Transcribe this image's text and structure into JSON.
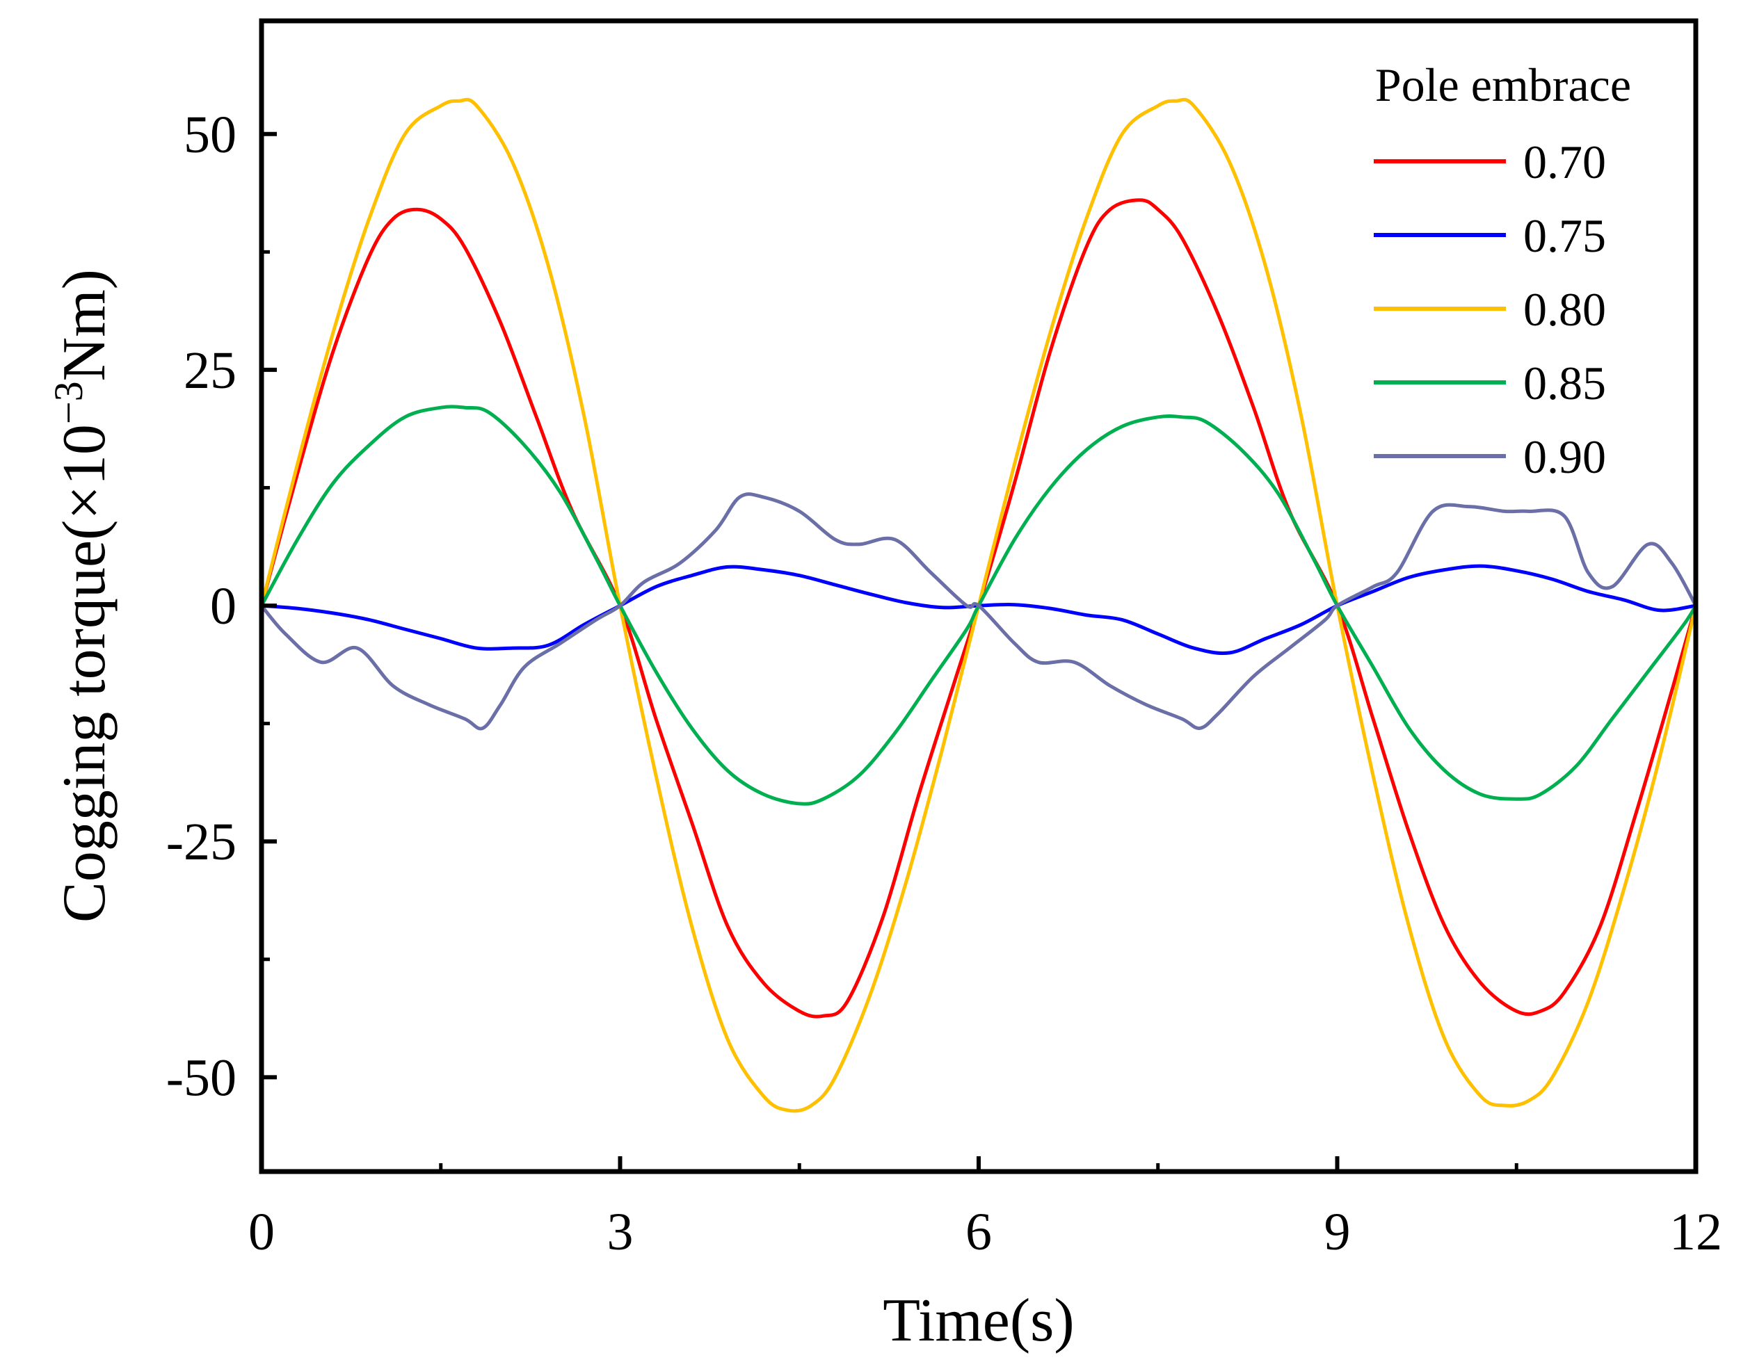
{
  "chart_data": {
    "type": "line",
    "title": "",
    "xlabel": "Time(s)",
    "ylabel": "Cogging torque(×10",
    "ylabel_sup": "−3",
    "ylabel_tail": "Nm)",
    "xlim": [
      0,
      12
    ],
    "ylim": [
      -60,
      62
    ],
    "xticks": [
      0,
      3,
      6,
      9,
      12
    ],
    "xtick_labels": [
      "0",
      "3",
      "6",
      "9",
      "12"
    ],
    "yticks": [
      50,
      25,
      0,
      -25,
      -50
    ],
    "ytick_labels": [
      "50",
      "25",
      "0",
      "-25",
      "-50"
    ],
    "grid": false,
    "legend_title": "Pole embrace",
    "legend_position": "top-right",
    "series": [
      {
        "name": "0.70",
        "color": "#ff0000",
        "x": [
          0,
          0.3,
          0.6,
          0.9,
          1.1,
          1.3,
          1.5,
          1.7,
          2.0,
          2.3,
          2.6,
          3.0,
          3.3,
          3.6,
          3.9,
          4.2,
          4.5,
          4.7,
          4.9,
          5.2,
          5.5,
          5.8,
          6.0,
          6.3,
          6.6,
          6.9,
          7.1,
          7.35,
          7.5,
          7.7,
          8.0,
          8.3,
          8.6,
          9.0,
          9.3,
          9.6,
          9.9,
          10.2,
          10.5,
          10.7,
          10.9,
          11.2,
          11.5,
          11.8,
          12.0
        ],
        "y": [
          0,
          14,
          27,
          37,
          41,
          42,
          41,
          38,
          30,
          20,
          10,
          0,
          -12,
          -23,
          -34,
          -40,
          -43,
          -43.5,
          -42,
          -33,
          -20,
          -8,
          0,
          13,
          27,
          38,
          42,
          43,
          42,
          39,
          31,
          21,
          10,
          0,
          -12,
          -24,
          -34,
          -40,
          -43,
          -43,
          -41,
          -34,
          -22,
          -9,
          0
        ]
      },
      {
        "name": "0.75",
        "color": "#0000ff",
        "x": [
          0,
          0.3,
          0.6,
          0.9,
          1.2,
          1.5,
          1.8,
          2.1,
          2.4,
          2.7,
          3.0,
          3.3,
          3.6,
          3.9,
          4.2,
          4.5,
          4.8,
          5.1,
          5.4,
          5.7,
          6.0,
          6.3,
          6.6,
          6.9,
          7.2,
          7.5,
          7.8,
          8.1,
          8.4,
          8.7,
          9.0,
          9.3,
          9.6,
          9.9,
          10.2,
          10.5,
          10.8,
          11.1,
          11.4,
          11.7,
          12.0
        ],
        "y": [
          0,
          -0.3,
          -0.8,
          -1.5,
          -2.5,
          -3.5,
          -4.5,
          -4.5,
          -4.2,
          -2,
          0,
          2,
          3.2,
          4.1,
          3.8,
          3.2,
          2.2,
          1.2,
          0.3,
          -0.2,
          0,
          0.1,
          -0.3,
          -1,
          -1.5,
          -3,
          -4.5,
          -5,
          -3.5,
          -2,
          0,
          1.5,
          3,
          3.8,
          4.2,
          3.7,
          2.8,
          1.5,
          0.6,
          -0.5,
          0
        ]
      },
      {
        "name": "0.80",
        "color": "#ffc000",
        "x": [
          0,
          0.3,
          0.6,
          0.9,
          1.2,
          1.5,
          1.65,
          1.8,
          2.1,
          2.4,
          2.7,
          3.0,
          3.3,
          3.6,
          3.9,
          4.2,
          4.4,
          4.6,
          4.8,
          5.1,
          5.4,
          5.7,
          6.0,
          6.3,
          6.6,
          6.9,
          7.2,
          7.5,
          7.65,
          7.8,
          8.1,
          8.4,
          8.7,
          9.0,
          9.3,
          9.6,
          9.9,
          10.2,
          10.4,
          10.6,
          10.8,
          11.1,
          11.4,
          11.7,
          12.0
        ],
        "y": [
          0,
          15,
          29,
          41,
          50,
          53,
          53.5,
          53,
          47,
          36,
          20,
          0,
          -18,
          -34,
          -46,
          -52,
          -53.5,
          -53,
          -50,
          -41,
          -29,
          -15,
          0,
          15,
          29,
          41,
          50,
          53,
          53.5,
          53,
          47,
          36,
          20,
          0,
          -18,
          -34,
          -46,
          -52,
          -53,
          -52.5,
          -50,
          -42,
          -30,
          -16,
          0
        ]
      },
      {
        "name": "0.85",
        "color": "#00b050",
        "x": [
          0,
          0.3,
          0.6,
          0.9,
          1.2,
          1.5,
          1.7,
          1.9,
          2.2,
          2.5,
          2.8,
          3.0,
          3.3,
          3.6,
          3.9,
          4.2,
          4.5,
          4.7,
          5.0,
          5.3,
          5.6,
          5.9,
          6.0,
          6.3,
          6.6,
          6.9,
          7.2,
          7.5,
          7.7,
          7.9,
          8.2,
          8.5,
          8.8,
          9.0,
          9.3,
          9.6,
          9.9,
          10.2,
          10.5,
          10.7,
          11.0,
          11.3,
          11.6,
          11.9,
          12.0
        ],
        "y": [
          0,
          7,
          13,
          17,
          20,
          21,
          21,
          20.5,
          17,
          12,
          5,
          0,
          -7,
          -13,
          -17.5,
          -20,
          -21,
          -20.5,
          -18,
          -13.5,
          -8,
          -2.5,
          0,
          7,
          12.5,
          16.5,
          19,
          20,
          20,
          19.5,
          16.5,
          12,
          5,
          0,
          -6.5,
          -13,
          -17.5,
          -20,
          -20.5,
          -20,
          -17,
          -12,
          -7,
          -2,
          0
        ]
      },
      {
        "name": "0.90",
        "color": "#6b6fa8",
        "x": [
          0,
          0.2,
          0.5,
          0.8,
          1.1,
          1.4,
          1.7,
          1.85,
          2.0,
          2.2,
          2.5,
          2.8,
          3.0,
          3.2,
          3.5,
          3.8,
          4.0,
          4.2,
          4.5,
          4.8,
          5.0,
          5.3,
          5.6,
          5.9,
          6.0,
          6.3,
          6.5,
          6.8,
          7.1,
          7.4,
          7.7,
          7.85,
          8.0,
          8.3,
          8.6,
          8.9,
          9.0,
          9.3,
          9.5,
          9.8,
          10.1,
          10.4,
          10.6,
          10.9,
          11.1,
          11.3,
          11.6,
          11.8,
          12.0
        ],
        "y": [
          0,
          -3,
          -6,
          -4.5,
          -8.5,
          -10.5,
          -12,
          -13,
          -10.5,
          -6.5,
          -4,
          -1.5,
          0,
          2.5,
          4.5,
          8,
          11.5,
          11.5,
          10,
          7,
          6.5,
          7,
          3.5,
          0,
          0,
          -4,
          -6,
          -6,
          -8.5,
          -10.5,
          -12,
          -13,
          -11.5,
          -7.5,
          -4.5,
          -1.5,
          0,
          2,
          3.5,
          10,
          10.5,
          10,
          10,
          9.5,
          3.5,
          2,
          6.5,
          4.5,
          0
        ]
      }
    ]
  }
}
